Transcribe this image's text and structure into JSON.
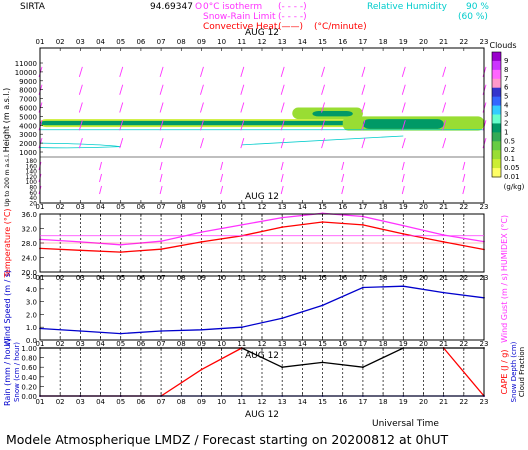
{
  "header": {
    "site": "SIRTA",
    "coords": "94.69347",
    "o_mark": "O",
    "legend": [
      {
        "label": "0°C isotherm",
        "symbol": "(- - - -)",
        "color": "#ff33ff"
      },
      {
        "label": "Snow-Rain Limit",
        "symbol": "(- - - -)",
        "color": "#ff33ff"
      },
      {
        "label": "Convective Heat.",
        "symbol": "(——)",
        "color": "#ff0000"
      },
      {
        "label": "(°C/minute)",
        "symbol": "",
        "color": "#ff0000"
      }
    ],
    "rh_label": "Relative Humidity",
    "rh_90": "90 %",
    "rh_60": "(60 %)"
  },
  "colors": {
    "magenta": "#ff33ff",
    "red": "#ff0000",
    "blue": "#0000cc",
    "cyan": "#00cccc",
    "black": "#000000"
  },
  "hours": [
    "01",
    "02",
    "03",
    "04",
    "05",
    "06",
    "07",
    "08",
    "09",
    "10",
    "11",
    "12",
    "13",
    "14",
    "15",
    "16",
    "17",
    "18",
    "19",
    "20",
    "21",
    "22",
    "23"
  ],
  "date_label": "AUG 12",
  "footer": {
    "title": "Modele Atmospherique LMDZ / Forecast starting on 20200812 at 0hUT",
    "universal_time": "Universal Time"
  },
  "chart_data": [
    {
      "type": "heatmap",
      "title": "Clouds",
      "ylabel": "Height (m a.s.l.)",
      "ylabel2": "Up to 200 m a.s.l.",
      "y_ticks_upper": [
        "11000",
        "10000",
        "9000",
        "8000",
        "7000",
        "6000",
        "5000",
        "4000",
        "3000",
        "2000",
        "1000"
      ],
      "y_ticks_lower": [
        "180",
        "160",
        "140",
        "120",
        "100",
        "80",
        "60",
        "40",
        "20"
      ],
      "colorbar": {
        "title": "Clouds",
        "unit": "(g/kg)",
        "ticks": [
          "9",
          "8",
          "7",
          "6",
          "5",
          "4",
          "3",
          "2",
          "1",
          "0.5",
          "0.2",
          "0.1",
          "0.05",
          "0.01"
        ],
        "colors": [
          "#9900cc",
          "#cc33ff",
          "#ff66ff",
          "#ff99cc",
          "#3333cc",
          "#3366ff",
          "#33ccff",
          "#66ffcc",
          "#009966",
          "#33aa55",
          "#66cc44",
          "#99dd33",
          "#ccee33",
          "#ffff66"
        ]
      },
      "cloud_layers": [
        {
          "start": 1,
          "end": 23,
          "base": 3800,
          "top": 4700,
          "level": "0.05"
        },
        {
          "start": 1,
          "end": 23,
          "base": 4000,
          "top": 4500,
          "level": "1"
        },
        {
          "start": 13.5,
          "end": 17,
          "base": 4700,
          "top": 6000,
          "level": "0.1"
        },
        {
          "start": 14.5,
          "end": 16.5,
          "base": 5000,
          "top": 5600,
          "level": "1"
        },
        {
          "start": 16,
          "end": 23,
          "base": 3400,
          "top": 5000,
          "level": "0.1"
        },
        {
          "start": 17,
          "end": 21,
          "base": 3600,
          "top": 4700,
          "level": "1"
        }
      ]
    },
    {
      "type": "line",
      "ylabel": "Temperature (°C)",
      "ylabel2": "HUMIDEX (°C)",
      "y_ticks": [
        "36.0",
        "32.0",
        "28.0",
        "24.0",
        "20.0"
      ],
      "ylim": [
        20,
        36
      ],
      "x": [
        1,
        3,
        5,
        7,
        9,
        11,
        13,
        15,
        17,
        19,
        21,
        23
      ],
      "series": [
        {
          "name": "Temperature",
          "color": "#ff0000",
          "values": [
            26.5,
            26.0,
            25.5,
            26.3,
            28.3,
            30.0,
            32.4,
            33.8,
            33.0,
            30.5,
            28.3,
            26.2
          ]
        },
        {
          "name": "HUMIDEX",
          "color": "#ff33ff",
          "values": [
            29.0,
            28.3,
            27.5,
            28.5,
            31.0,
            33.0,
            35.0,
            36.2,
            35.3,
            32.8,
            30.2,
            28.4
          ]
        }
      ]
    },
    {
      "type": "line",
      "ylabel": "Wind Speed (m / s)",
      "ylabel2": "Wind Gust (m / s)",
      "y_ticks": [
        "5.0",
        "4.0",
        "3.0",
        "2.0",
        "1.0",
        "0.0"
      ],
      "ylim": [
        0,
        5
      ],
      "x": [
        1,
        3,
        5,
        7,
        9,
        11,
        13,
        15,
        17,
        19,
        21,
        23
      ],
      "series": [
        {
          "name": "Wind Speed",
          "color": "#0000cc",
          "values": [
            0.9,
            0.7,
            0.5,
            0.7,
            0.8,
            1.0,
            1.7,
            2.7,
            4.1,
            4.2,
            3.7,
            3.3
          ]
        }
      ]
    },
    {
      "type": "line",
      "ylabel": "Rain (mm / hour)",
      "ylabel2": "Snow (cm / hour)",
      "ylabel3": "CAPE (J / g)",
      "ylabel4": "Snow Depth (cm)",
      "ylabel5": "Cloud Fraction",
      "y_ticks": [
        "1.00",
        "0.80",
        "0.60",
        "0.40",
        "0.20",
        "0.00"
      ],
      "ylim": [
        0,
        1
      ],
      "x": [
        1,
        3,
        5,
        7,
        9,
        11,
        13,
        15,
        17,
        19,
        21,
        23
      ],
      "series": [
        {
          "name": "Cloud Fraction",
          "color": "#000000",
          "values": [
            1.0,
            1.0,
            1.0,
            1.0,
            1.0,
            1.0,
            0.6,
            0.7,
            0.6,
            1.0,
            1.0,
            1.0
          ]
        },
        {
          "name": "CAPE",
          "color": "#ff0000",
          "values": [
            0,
            0,
            0,
            0,
            0.55,
            1.0,
            null,
            null,
            null,
            null,
            1.0,
            0.0
          ]
        },
        {
          "name": "Rain",
          "color": "#0000cc",
          "values": [
            0,
            0,
            0,
            0,
            0,
            0,
            0,
            0,
            0,
            0,
            0,
            0
          ]
        }
      ]
    }
  ]
}
